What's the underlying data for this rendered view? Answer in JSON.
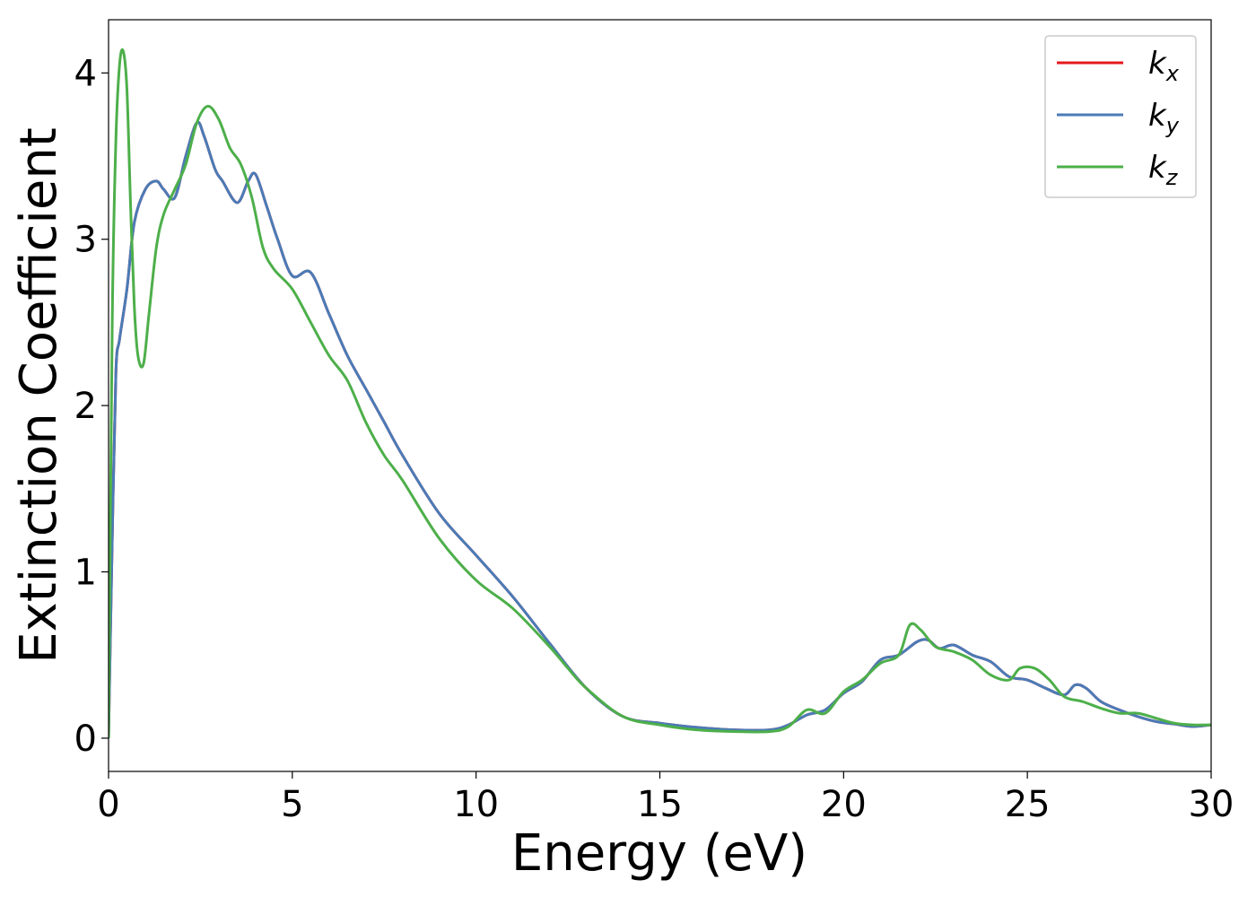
{
  "chart_data": {
    "type": "line",
    "title": "",
    "xlabel": "Energy (eV)",
    "ylabel": "Extinction Coefficient",
    "xlim": [
      0,
      30
    ],
    "ylim": [
      -0.2,
      4.32
    ],
    "xticks": [
      0,
      5,
      10,
      15,
      20,
      25,
      30
    ],
    "yticks": [
      0,
      1,
      2,
      3,
      4
    ],
    "grid": false,
    "legend_position": "top-right",
    "series": [
      {
        "name": "k_x",
        "legend_base": "k",
        "legend_sub": "x",
        "color": "#e41a1c",
        "hidden_behind": "k_y",
        "x": [
          0,
          0.1,
          0.2,
          0.3,
          0.5,
          0.7,
          1.0,
          1.3,
          1.5,
          1.8,
          2.1,
          2.4,
          2.6,
          2.9,
          3.1,
          3.5,
          3.8,
          4.0,
          4.3,
          4.6,
          5.0,
          5.5,
          6.0,
          6.5,
          7.0,
          7.5,
          8.0,
          9.0,
          10.0,
          11.0,
          12.0,
          13.0,
          14.0,
          15.0,
          16.0,
          17.0,
          18.0,
          18.5,
          19.0,
          19.5,
          20.0,
          20.5,
          21.0,
          21.5,
          22.0,
          22.3,
          22.6,
          23.0,
          23.5,
          24.0,
          24.5,
          25.0,
          25.5,
          26.0,
          26.3,
          26.6,
          27.0,
          27.5,
          28.0,
          28.5,
          29.0,
          29.5,
          30.0
        ],
        "y": [
          0,
          1.2,
          2.2,
          2.4,
          2.7,
          3.1,
          3.3,
          3.35,
          3.3,
          3.25,
          3.5,
          3.7,
          3.62,
          3.42,
          3.35,
          3.22,
          3.35,
          3.39,
          3.2,
          3.0,
          2.78,
          2.8,
          2.55,
          2.3,
          2.1,
          1.9,
          1.7,
          1.35,
          1.1,
          0.85,
          0.57,
          0.3,
          0.13,
          0.09,
          0.065,
          0.05,
          0.05,
          0.08,
          0.14,
          0.17,
          0.27,
          0.34,
          0.47,
          0.5,
          0.58,
          0.59,
          0.54,
          0.56,
          0.5,
          0.46,
          0.37,
          0.35,
          0.3,
          0.26,
          0.32,
          0.3,
          0.22,
          0.17,
          0.13,
          0.1,
          0.085,
          0.07,
          0.08
        ]
      },
      {
        "name": "k_y",
        "legend_base": "k",
        "legend_sub": "y",
        "color": "#4a7bb7",
        "x": [
          0,
          0.1,
          0.2,
          0.3,
          0.5,
          0.7,
          1.0,
          1.3,
          1.5,
          1.8,
          2.1,
          2.4,
          2.6,
          2.9,
          3.1,
          3.5,
          3.8,
          4.0,
          4.3,
          4.6,
          5.0,
          5.5,
          6.0,
          6.5,
          7.0,
          7.5,
          8.0,
          9.0,
          10.0,
          11.0,
          12.0,
          13.0,
          14.0,
          15.0,
          16.0,
          17.0,
          18.0,
          18.5,
          19.0,
          19.5,
          20.0,
          20.5,
          21.0,
          21.5,
          22.0,
          22.3,
          22.6,
          23.0,
          23.5,
          24.0,
          24.5,
          25.0,
          25.5,
          26.0,
          26.3,
          26.6,
          27.0,
          27.5,
          28.0,
          28.5,
          29.0,
          29.5,
          30.0
        ],
        "y": [
          0,
          1.2,
          2.2,
          2.4,
          2.7,
          3.1,
          3.3,
          3.35,
          3.3,
          3.25,
          3.5,
          3.7,
          3.62,
          3.42,
          3.35,
          3.22,
          3.35,
          3.39,
          3.2,
          3.0,
          2.78,
          2.8,
          2.55,
          2.3,
          2.1,
          1.9,
          1.7,
          1.35,
          1.1,
          0.85,
          0.57,
          0.3,
          0.13,
          0.09,
          0.065,
          0.05,
          0.05,
          0.08,
          0.14,
          0.17,
          0.27,
          0.34,
          0.47,
          0.5,
          0.58,
          0.59,
          0.54,
          0.56,
          0.5,
          0.46,
          0.37,
          0.35,
          0.3,
          0.26,
          0.32,
          0.3,
          0.22,
          0.17,
          0.13,
          0.1,
          0.085,
          0.07,
          0.08
        ]
      },
      {
        "name": "k_z",
        "legend_base": "k",
        "legend_sub": "z",
        "color": "#4daf4a",
        "x": [
          0,
          0.1,
          0.2,
          0.3,
          0.4,
          0.5,
          0.6,
          0.7,
          0.8,
          0.95,
          1.1,
          1.3,
          1.5,
          1.8,
          2.1,
          2.4,
          2.7,
          3.0,
          3.3,
          3.6,
          3.9,
          4.2,
          4.5,
          5.0,
          5.5,
          6.0,
          6.5,
          7.0,
          7.5,
          8.0,
          9.0,
          10.0,
          11.0,
          12.0,
          12.5,
          13.0,
          14.0,
          15.0,
          16.0,
          17.0,
          18.0,
          18.5,
          19.0,
          19.5,
          20.0,
          20.5,
          21.0,
          21.5,
          21.8,
          22.1,
          22.5,
          23.0,
          23.5,
          24.0,
          24.5,
          24.8,
          25.2,
          25.6,
          26.0,
          26.5,
          27.0,
          27.5,
          28.0,
          28.5,
          29.0,
          29.5,
          30.0
        ],
        "y": [
          0,
          2.5,
          3.6,
          4.05,
          4.13,
          3.9,
          3.2,
          2.6,
          2.3,
          2.25,
          2.55,
          2.95,
          3.15,
          3.3,
          3.45,
          3.7,
          3.8,
          3.72,
          3.55,
          3.45,
          3.25,
          2.95,
          2.82,
          2.7,
          2.5,
          2.3,
          2.15,
          1.9,
          1.7,
          1.55,
          1.2,
          0.95,
          0.78,
          0.55,
          0.42,
          0.3,
          0.13,
          0.08,
          0.05,
          0.04,
          0.04,
          0.07,
          0.17,
          0.15,
          0.28,
          0.35,
          0.45,
          0.5,
          0.68,
          0.65,
          0.55,
          0.52,
          0.47,
          0.38,
          0.35,
          0.42,
          0.42,
          0.35,
          0.25,
          0.22,
          0.18,
          0.15,
          0.15,
          0.12,
          0.09,
          0.08,
          0.08
        ]
      }
    ]
  }
}
